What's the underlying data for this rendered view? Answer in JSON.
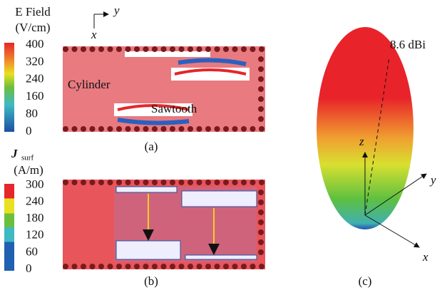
{
  "panel_a": {
    "colorbar": {
      "title": "E Field",
      "unit": "(V/cm)",
      "ticks": [
        400,
        320,
        240,
        160,
        80,
        0
      ]
    },
    "axes": {
      "y": "y",
      "x": "x"
    },
    "labels": [
      "Cylinder",
      "Sawtooth"
    ],
    "caption": "(a)"
  },
  "panel_b": {
    "colorbar": {
      "symbol": "J",
      "subscript": "surf",
      "unit": "(A/m)",
      "ticks": [
        300,
        240,
        180,
        120,
        60,
        0
      ]
    },
    "caption": "(b)"
  },
  "panel_c": {
    "gain": "8.6 dBi",
    "axes": {
      "z": "z",
      "y": "y",
      "x": "x"
    },
    "caption": "(c)"
  }
}
